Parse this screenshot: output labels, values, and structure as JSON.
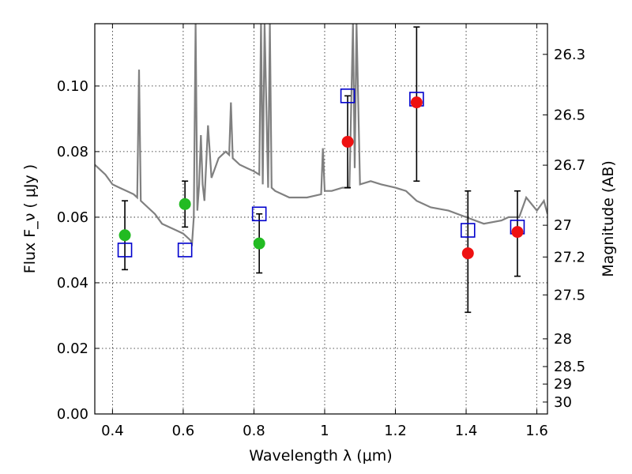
{
  "chart_data": {
    "type": "scatter",
    "title": "",
    "xlabel": "Wavelength  λ (μm)",
    "ylabel": "Flux  F_ν  ( μJy )",
    "y2label": "Magnitude (AB)",
    "xlim": [
      0.35,
      1.63
    ],
    "ylim": [
      0.0,
      0.119
    ],
    "grid": true,
    "x_ticks": [
      0.4,
      0.6,
      0.8,
      1.0,
      1.2,
      1.4,
      1.6
    ],
    "x_tick_labels": [
      "0.4",
      "0.6",
      "0.8",
      "1",
      "1.2",
      "1.4",
      "1.6"
    ],
    "y_ticks": [
      0.0,
      0.02,
      0.04,
      0.06,
      0.08,
      0.1
    ],
    "y_tick_labels": [
      "0.00",
      "0.02",
      "0.04",
      "0.06",
      "0.08",
      "0.10"
    ],
    "y2_ticks": [
      "26.3",
      "26.5",
      "26.7",
      "27",
      "27.2",
      "27.5",
      "28",
      "28.5",
      "29",
      "30"
    ],
    "colors": {
      "spectrum": "#808080",
      "model": "#0000cc",
      "optical": "#22bb22",
      "nir": "#ee1111",
      "errorbar": "#000000"
    },
    "series": [
      {
        "kind": "spectrum",
        "x": [
          0.35,
          0.36,
          0.38,
          0.4,
          0.42,
          0.44,
          0.46,
          0.47,
          0.475,
          0.48,
          0.5,
          0.52,
          0.54,
          0.56,
          0.58,
          0.6,
          0.62,
          0.625,
          0.63,
          0.635,
          0.64,
          0.645,
          0.65,
          0.655,
          0.66,
          0.67,
          0.68,
          0.69,
          0.7,
          0.72,
          0.73,
          0.735,
          0.74,
          0.76,
          0.78,
          0.8,
          0.815,
          0.82,
          0.825,
          0.83,
          0.84,
          0.845,
          0.85,
          0.86,
          0.88,
          0.9,
          0.95,
          0.99,
          0.995,
          1.0,
          1.02,
          1.05,
          1.07,
          1.08,
          1.085,
          1.09,
          1.1,
          1.13,
          1.16,
          1.2,
          1.23,
          1.26,
          1.3,
          1.35,
          1.4,
          1.45,
          1.5,
          1.52,
          1.55,
          1.57,
          1.6,
          1.62,
          1.63
        ],
        "y": [
          0.076,
          0.075,
          0.073,
          0.07,
          0.069,
          0.068,
          0.067,
          0.066,
          0.105,
          0.065,
          0.063,
          0.061,
          0.058,
          0.057,
          0.056,
          0.055,
          0.053,
          0.052,
          0.06,
          0.119,
          0.062,
          0.07,
          0.085,
          0.07,
          0.065,
          0.088,
          0.072,
          0.075,
          0.078,
          0.08,
          0.079,
          0.095,
          0.078,
          0.076,
          0.075,
          0.074,
          0.073,
          0.119,
          0.07,
          0.119,
          0.069,
          0.119,
          0.069,
          0.068,
          0.067,
          0.066,
          0.066,
          0.067,
          0.081,
          0.068,
          0.068,
          0.069,
          0.069,
          0.119,
          0.075,
          0.119,
          0.07,
          0.071,
          0.07,
          0.069,
          0.068,
          0.065,
          0.063,
          0.062,
          0.06,
          0.058,
          0.059,
          0.06,
          0.06,
          0.066,
          0.062,
          0.065,
          0.061
        ]
      },
      {
        "kind": "model",
        "name": "",
        "x": [
          0.435,
          0.605,
          0.815,
          1.065,
          1.26,
          1.405,
          1.545
        ],
        "y": [
          0.05,
          0.05,
          0.061,
          0.097,
          0.096,
          0.056,
          0.057
        ]
      },
      {
        "kind": "optical",
        "name": "",
        "x": [
          0.435,
          0.605,
          0.815
        ],
        "y": [
          0.0545,
          0.064,
          0.052
        ],
        "err_low": [
          0.044,
          0.057,
          0.043
        ],
        "err_high": [
          0.065,
          0.071,
          0.061
        ]
      },
      {
        "kind": "nir",
        "name": "",
        "x": [
          1.065,
          1.26,
          1.405,
          1.545
        ],
        "y": [
          0.083,
          0.095,
          0.049,
          0.0555
        ],
        "err_low": [
          0.069,
          0.071,
          0.031,
          0.042
        ],
        "err_high": [
          0.097,
          0.118,
          0.068,
          0.068
        ]
      }
    ]
  }
}
